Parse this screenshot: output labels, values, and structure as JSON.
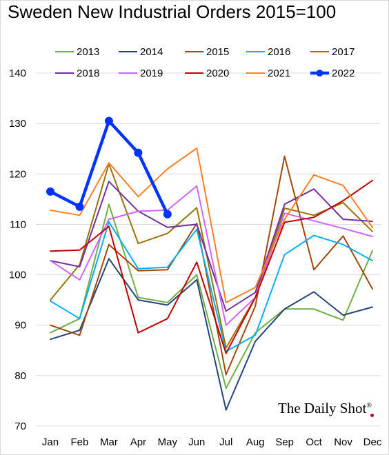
{
  "chart_data": {
    "type": "line",
    "title": "Sweden New Industrial Orders 2015=100",
    "xlabel": "",
    "ylabel": "",
    "categories": [
      "Jan",
      "Feb",
      "Mar",
      "Apr",
      "May",
      "Jun",
      "Jul",
      "Aug",
      "Sep",
      "Oct",
      "Nov",
      "Dec"
    ],
    "ylim": [
      70,
      140
    ],
    "yticks": [
      70,
      80,
      90,
      100,
      110,
      120,
      130,
      140
    ],
    "grid": "horizontal",
    "legend_position": "top",
    "series": [
      {
        "name": "2013",
        "color": "#70ad47",
        "values": [
          88.5,
          91.3,
          114.0,
          95.5,
          94.5,
          100.0,
          77.5,
          88.5,
          93.2,
          93.2,
          91.0,
          104.8
        ]
      },
      {
        "name": "2014",
        "color": "#264478",
        "values": [
          87.2,
          89.0,
          103.2,
          95.0,
          94.0,
          99.0,
          73.2,
          86.8,
          93.2,
          96.6,
          92.0,
          93.6
        ]
      },
      {
        "name": "2015",
        "color": "#9e480e",
        "values": [
          90.0,
          88.0,
          106.0,
          100.8,
          101.0,
          110.2,
          80.2,
          93.8,
          123.5,
          101.0,
          107.7,
          97.2
        ]
      },
      {
        "name": "2016",
        "color": "#00b0f0",
        "values": [
          94.8,
          91.3,
          110.5,
          101.2,
          101.5,
          109.0,
          84.8,
          88.0,
          104.0,
          107.8,
          106.0,
          102.8
        ]
      },
      {
        "name": "2017",
        "color": "#997300",
        "values": [
          95.0,
          102.0,
          122.0,
          106.2,
          108.2,
          113.3,
          85.5,
          95.5,
          113.2,
          111.8,
          114.3,
          108.6
        ]
      },
      {
        "name": "2018",
        "color": "#7030a0",
        "values": [
          102.8,
          101.6,
          118.5,
          112.6,
          109.4,
          110.0,
          92.8,
          96.5,
          114.0,
          117.0,
          111.0,
          110.6
        ]
      },
      {
        "name": "2019",
        "color": "#cc66ff",
        "values": [
          102.8,
          99.0,
          111.0,
          112.6,
          112.8,
          117.6,
          90.0,
          95.5,
          112.2,
          110.7,
          109.2,
          107.6
        ]
      },
      {
        "name": "2020",
        "color": "#c00000",
        "values": [
          104.7,
          104.9,
          109.6,
          88.5,
          91.3,
          102.5,
          84.4,
          95.5,
          110.4,
          111.4,
          114.7,
          118.7
        ]
      },
      {
        "name": "2021",
        "color": "#ff7f27",
        "values": [
          112.8,
          111.8,
          122.2,
          115.5,
          121.0,
          125.1,
          94.5,
          97.5,
          111.0,
          119.8,
          117.7,
          109.4
        ]
      },
      {
        "name": "2022",
        "color": "#0033ff",
        "bold": true,
        "markers": true,
        "values": [
          116.5,
          113.5,
          130.5,
          124.2,
          112.0,
          null,
          null,
          null,
          null,
          null,
          null,
          null
        ]
      }
    ]
  },
  "watermark": {
    "text": "The Daily Shot",
    "mark": "®"
  }
}
